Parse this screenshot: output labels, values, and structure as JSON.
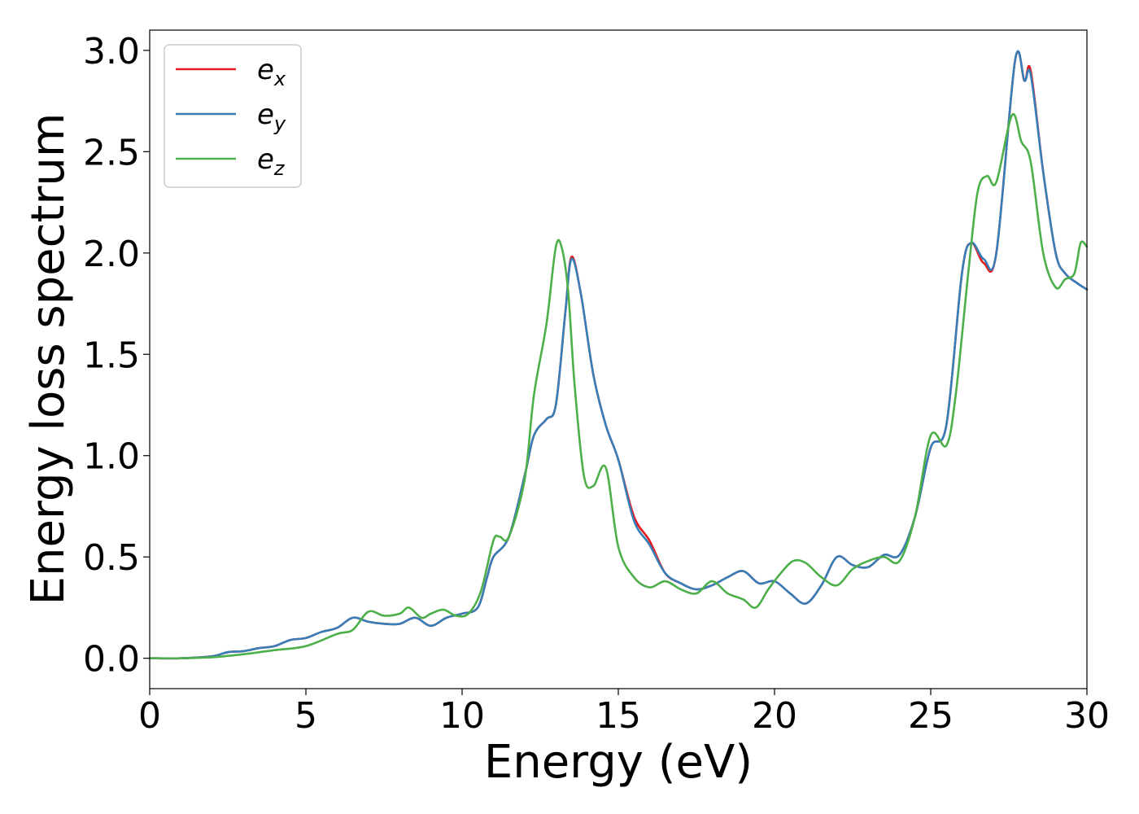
{
  "chart_data": {
    "type": "line",
    "title": "",
    "xlabel": "Energy (eV)",
    "ylabel": "Energy loss spectrum",
    "xlim": [
      0,
      30
    ],
    "ylim": [
      -0.15,
      3.1
    ],
    "xticks": [
      0,
      5,
      10,
      15,
      20,
      25,
      30
    ],
    "xtick_labels": [
      "0",
      "5",
      "10",
      "15",
      "20",
      "25",
      "30"
    ],
    "yticks": [
      0.0,
      0.5,
      1.0,
      1.5,
      2.0,
      2.5,
      3.0
    ],
    "ytick_labels": [
      "0.0",
      "0.5",
      "1.0",
      "1.5",
      "2.0",
      "2.5",
      "3.0"
    ],
    "grid": false,
    "legend_position": "top-left",
    "series": [
      {
        "name": "e",
        "subscript": "x",
        "color": "#e41a1c",
        "x": [
          0,
          1,
          2,
          2.5,
          3,
          3.5,
          4,
          4.5,
          5,
          5.5,
          6,
          6.5,
          7,
          7.5,
          8,
          8.5,
          9,
          9.5,
          10,
          10.5,
          10.8,
          11,
          11.5,
          12,
          12.3,
          12.7,
          13,
          13.3,
          13.5,
          13.8,
          14.2,
          14.6,
          15,
          15.5,
          16,
          16.5,
          17,
          17.5,
          18,
          18.5,
          19,
          19.5,
          20,
          20.5,
          21,
          21.5,
          22,
          22.5,
          23,
          23.5,
          24,
          24.5,
          25,
          25.5,
          26,
          26.3,
          26.7,
          27.1,
          27.7,
          28,
          28.2,
          28.6,
          29,
          29.3,
          29.7,
          30
        ],
        "y": [
          0,
          0,
          0.01,
          0.03,
          0.035,
          0.05,
          0.06,
          0.09,
          0.1,
          0.13,
          0.15,
          0.2,
          0.18,
          0.17,
          0.17,
          0.2,
          0.16,
          0.2,
          0.22,
          0.25,
          0.4,
          0.5,
          0.6,
          0.9,
          1.1,
          1.18,
          1.25,
          1.7,
          1.98,
          1.8,
          1.4,
          1.15,
          0.98,
          0.7,
          0.58,
          0.42,
          0.37,
          0.34,
          0.36,
          0.4,
          0.43,
          0.37,
          0.38,
          0.32,
          0.27,
          0.36,
          0.5,
          0.46,
          0.45,
          0.51,
          0.51,
          0.7,
          1.04,
          1.15,
          1.9,
          2.05,
          1.95,
          2.0,
          2.95,
          2.85,
          2.9,
          2.4,
          2.0,
          1.9,
          1.85,
          1.82
        ]
      },
      {
        "name": "e",
        "subscript": "y",
        "color": "#377eb8",
        "x": [
          0,
          1,
          2,
          2.5,
          3,
          3.5,
          4,
          4.5,
          5,
          5.5,
          6,
          6.5,
          7,
          7.5,
          8,
          8.5,
          9,
          9.5,
          10,
          10.5,
          10.8,
          11,
          11.5,
          12,
          12.3,
          12.7,
          13,
          13.3,
          13.5,
          13.8,
          14.2,
          14.6,
          15,
          15.5,
          16,
          16.5,
          17,
          17.5,
          18,
          18.5,
          19,
          19.5,
          20,
          20.5,
          21,
          21.5,
          22,
          22.5,
          23,
          23.5,
          24,
          24.5,
          25,
          25.5,
          26,
          26.3,
          26.7,
          27.1,
          27.7,
          28,
          28.2,
          28.6,
          29,
          29.3,
          29.7,
          30
        ],
        "y": [
          0,
          0,
          0.01,
          0.03,
          0.035,
          0.05,
          0.06,
          0.09,
          0.1,
          0.13,
          0.15,
          0.2,
          0.18,
          0.17,
          0.17,
          0.2,
          0.16,
          0.2,
          0.22,
          0.25,
          0.4,
          0.5,
          0.6,
          0.9,
          1.1,
          1.18,
          1.25,
          1.7,
          1.97,
          1.8,
          1.4,
          1.15,
          0.98,
          0.68,
          0.56,
          0.42,
          0.37,
          0.34,
          0.36,
          0.4,
          0.43,
          0.37,
          0.38,
          0.32,
          0.27,
          0.36,
          0.5,
          0.46,
          0.45,
          0.51,
          0.51,
          0.7,
          1.04,
          1.15,
          1.9,
          2.05,
          1.97,
          2.0,
          2.95,
          2.85,
          2.88,
          2.4,
          2.0,
          1.9,
          1.85,
          1.82
        ]
      },
      {
        "name": "e",
        "subscript": "z",
        "color": "#4daf4a",
        "x": [
          0,
          1,
          2,
          3,
          4,
          5,
          6,
          6.5,
          7,
          7.5,
          8,
          8.3,
          8.7,
          9,
          9.4,
          9.8,
          10.2,
          10.6,
          11,
          11.2,
          11.5,
          12,
          12.3,
          12.7,
          13,
          13.2,
          13.4,
          13.6,
          13.9,
          14.2,
          14.6,
          15,
          15.5,
          16,
          16.5,
          17,
          17.5,
          18,
          18.5,
          19,
          19.4,
          19.8,
          20.2,
          20.6,
          21,
          21.5,
          22,
          22.5,
          23,
          23.5,
          24,
          24.5,
          25,
          25.5,
          25.8,
          26.2,
          26.5,
          26.8,
          27.1,
          27.6,
          27.9,
          28.2,
          28.6,
          29,
          29.3,
          29.6,
          29.8,
          30
        ],
        "y": [
          0,
          0,
          0.005,
          0.02,
          0.04,
          0.06,
          0.12,
          0.14,
          0.23,
          0.21,
          0.22,
          0.25,
          0.2,
          0.22,
          0.24,
          0.21,
          0.22,
          0.33,
          0.58,
          0.6,
          0.6,
          0.88,
          1.3,
          1.65,
          2.03,
          2.02,
          1.8,
          1.35,
          0.9,
          0.85,
          0.94,
          0.55,
          0.4,
          0.35,
          0.38,
          0.34,
          0.32,
          0.38,
          0.32,
          0.29,
          0.25,
          0.34,
          0.42,
          0.48,
          0.47,
          0.4,
          0.36,
          0.44,
          0.48,
          0.5,
          0.48,
          0.7,
          1.1,
          1.05,
          1.3,
          1.9,
          2.3,
          2.38,
          2.35,
          2.68,
          2.55,
          2.45,
          2.0,
          1.83,
          1.87,
          1.9,
          2.05,
          2.03
        ]
      }
    ]
  }
}
